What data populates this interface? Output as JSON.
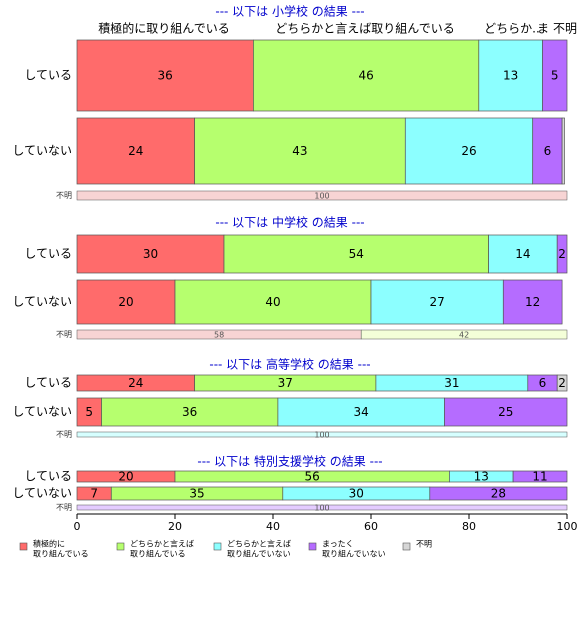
{
  "colors": {
    "c1": "#FF6B6B",
    "c2": "#B6FF6E",
    "c3": "#8CFFFF",
    "c4": "#B56CFF",
    "c5": "#D6D6D6",
    "section_title": "#0000CC"
  },
  "chart_data": {
    "type": "bar",
    "orientation": "horizontal",
    "stacked": true,
    "xlim": [
      0,
      100
    ],
    "x_ticks": [
      "0",
      "20",
      "40",
      "60",
      "80",
      "100"
    ],
    "category_header": {
      "c1": "積極的に取り組んでいる",
      "c2": "どちらかと言えば取り組んでいる",
      "c3": "どちらか..",
      "c4": "ま",
      "c5": "不明"
    },
    "legend": [
      {
        "key": "c1",
        "line1": "積極的に",
        "line2": "取り組んでいる"
      },
      {
        "key": "c2",
        "line1": "どちらかと言えば",
        "line2": "取り組んでいる"
      },
      {
        "key": "c3",
        "line1": "どちらかと言えば",
        "line2": "取り組んでいない"
      },
      {
        "key": "c4",
        "line1": "まったく",
        "line2": "取り組んでいない"
      },
      {
        "key": "c5",
        "line1": "不明",
        "line2": ""
      }
    ],
    "sections": [
      {
        "title": "--- 以下は 小学校 の結果 ---",
        "rows": [
          {
            "label": "している",
            "values": [
              36,
              46,
              13,
              5,
              0
            ],
            "labels": [
              "36",
              "46",
              "13",
              "5",
              ""
            ]
          },
          {
            "label": "していない",
            "values": [
              24,
              43,
              26,
              6,
              0.5
            ],
            "labels": [
              "24",
              "43",
              "26",
              "6",
              ""
            ]
          }
        ],
        "unknown": {
          "label": "不明",
          "values": [
            100,
            0,
            0,
            0,
            0
          ],
          "labels": [
            "100",
            "",
            "",
            "",
            ""
          ]
        }
      },
      {
        "title": "--- 以下は 中学校 の結果 ---",
        "rows": [
          {
            "label": "している",
            "values": [
              30,
              54,
              14,
              2,
              0
            ],
            "labels": [
              "30",
              "54",
              "14",
              "2",
              ""
            ]
          },
          {
            "label": "していない",
            "values": [
              20,
              40,
              27,
              12,
              0
            ],
            "labels": [
              "20",
              "40",
              "27",
              "12",
              ""
            ]
          }
        ],
        "unknown": {
          "label": "不明",
          "values": [
            58,
            42,
            0,
            0,
            0
          ],
          "labels": [
            "58",
            "42",
            "",
            "",
            ""
          ]
        }
      },
      {
        "title": "--- 以下は 高等学校 の結果 ---",
        "rows": [
          {
            "label": "している",
            "values": [
              24,
              37,
              31,
              6,
              2
            ],
            "labels": [
              "24",
              "37",
              "31",
              "6",
              "2"
            ]
          },
          {
            "label": "していない",
            "values": [
              5,
              36,
              34,
              25,
              0
            ],
            "labels": [
              "5",
              "36",
              "34",
              "25",
              ""
            ]
          }
        ],
        "unknown": {
          "label": "不明",
          "values": [
            0,
            0,
            100,
            0,
            0
          ],
          "labels": [
            "",
            "",
            "100",
            "",
            ""
          ]
        }
      },
      {
        "title": "--- 以下は 特別支援学校 の結果 ---",
        "rows": [
          {
            "label": "している",
            "values": [
              20,
              56,
              13,
              11,
              0
            ],
            "labels": [
              "20",
              "56",
              "13",
              "11",
              ""
            ]
          },
          {
            "label": "していない",
            "values": [
              7,
              35,
              30,
              28,
              0
            ],
            "labels": [
              "7",
              "35",
              "30",
              "28",
              ""
            ]
          }
        ],
        "unknown": {
          "label": "不明",
          "values": [
            0,
            0,
            0,
            100,
            0
          ],
          "labels": [
            "",
            "",
            "",
            "100",
            ""
          ]
        }
      }
    ]
  }
}
